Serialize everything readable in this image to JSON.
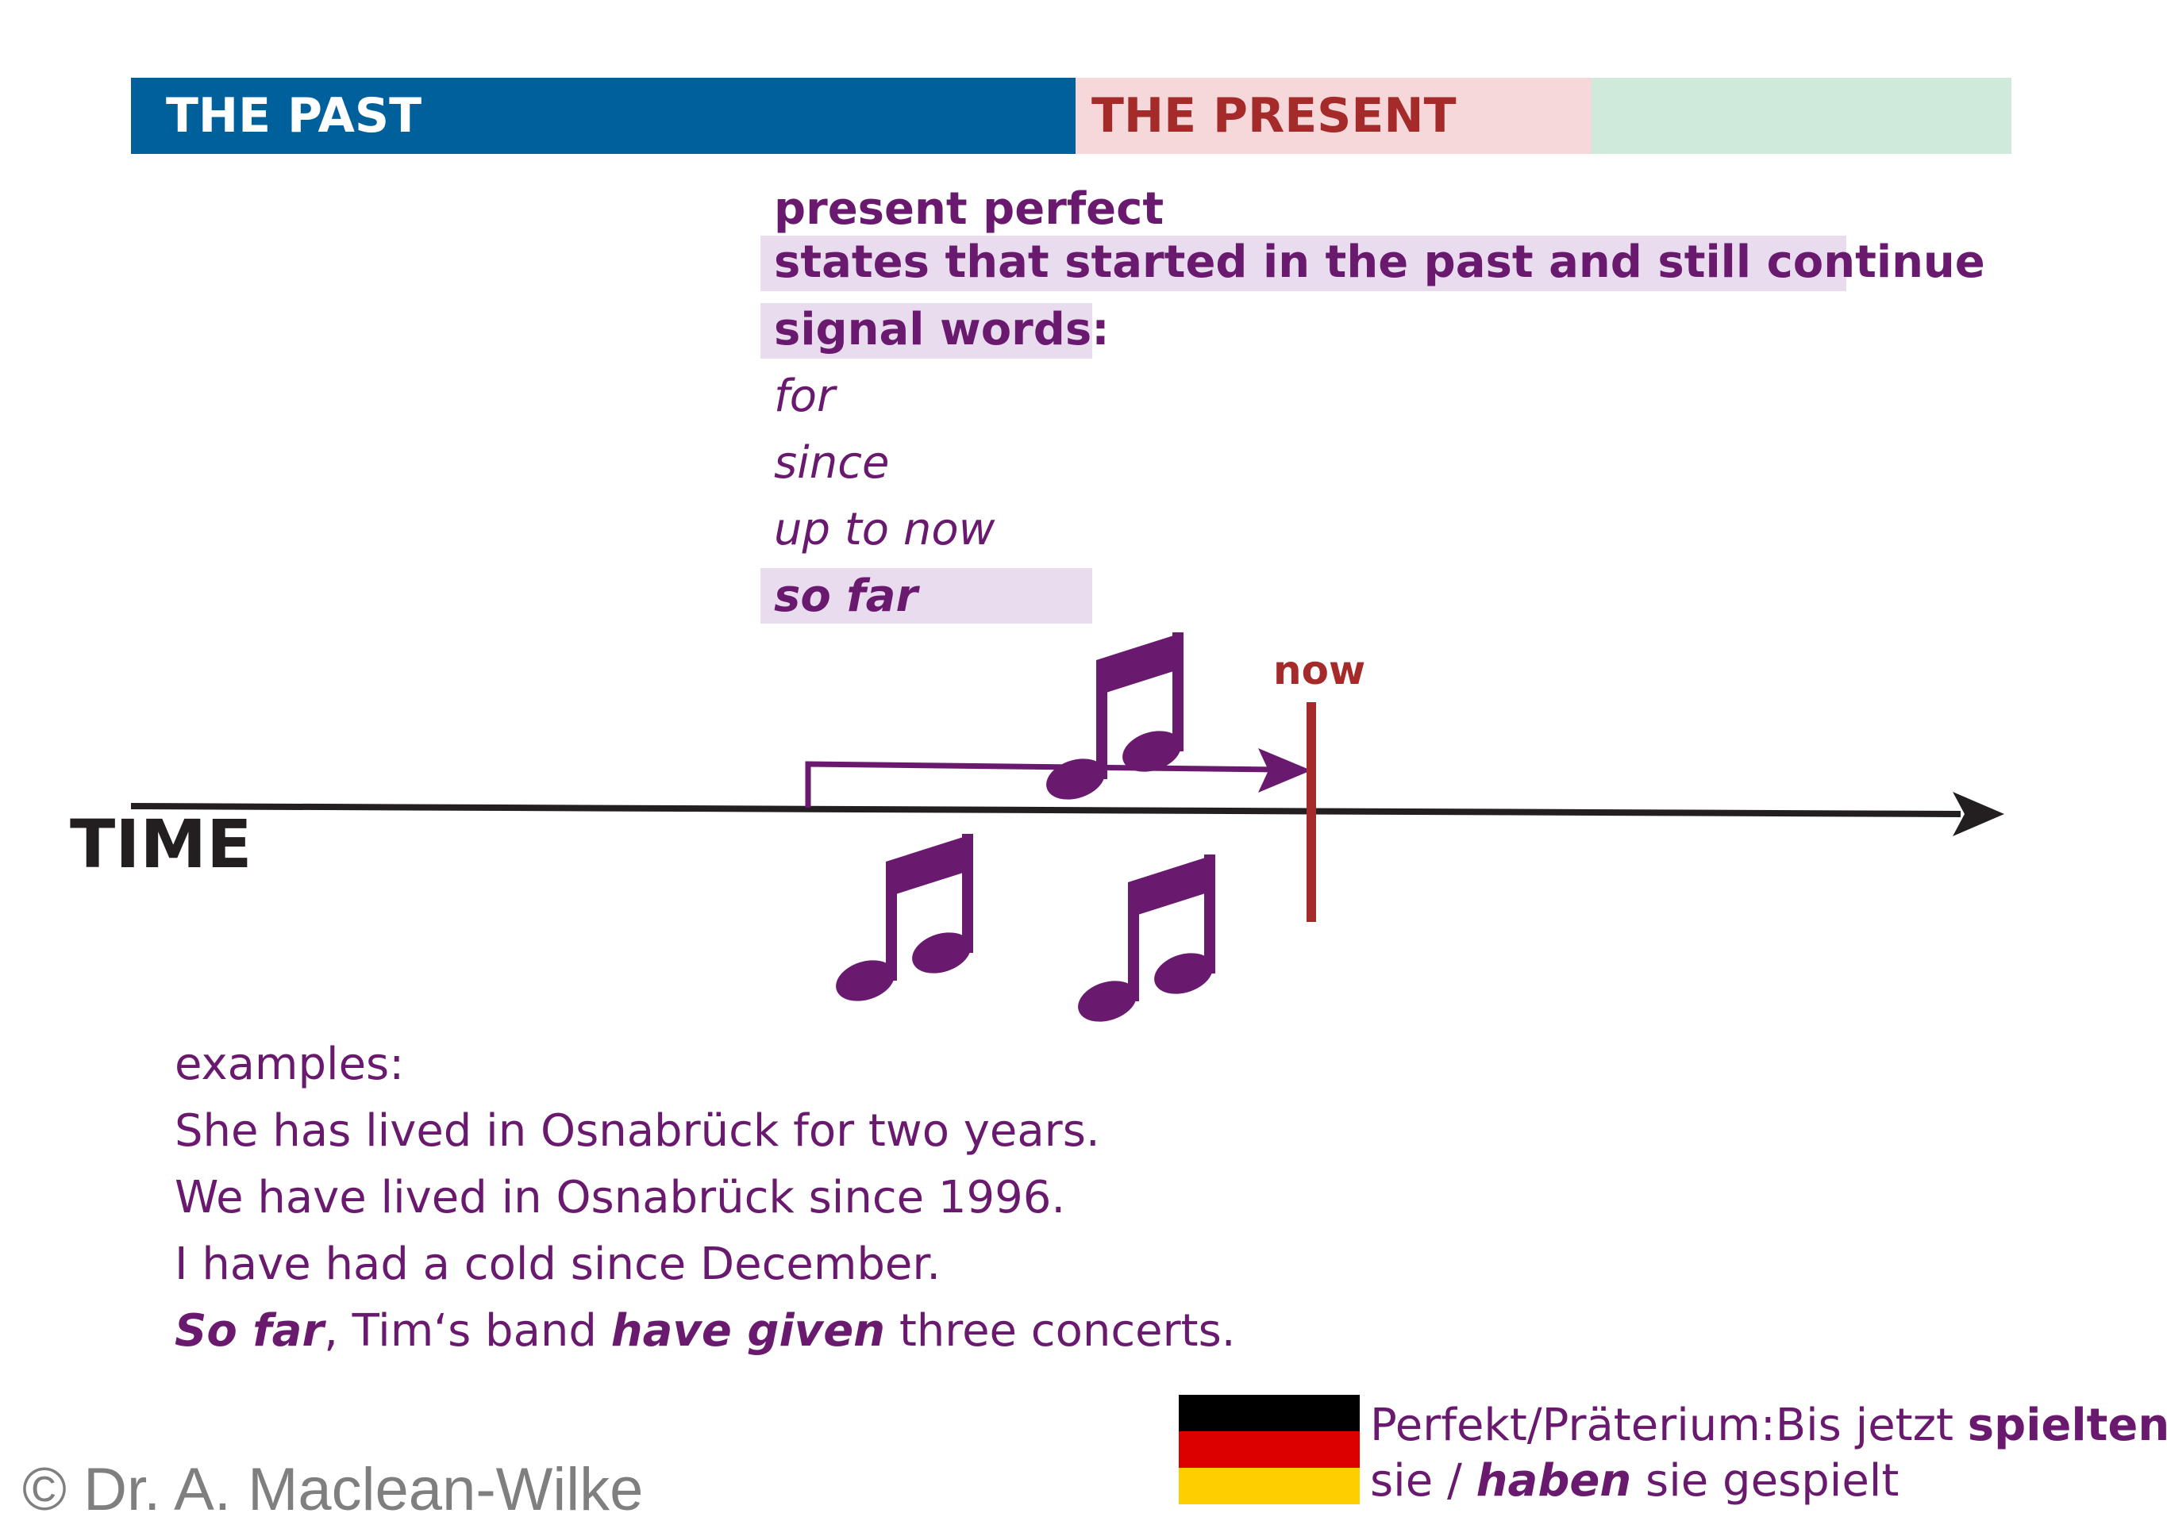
{
  "header": {
    "past_label": "THE PAST",
    "present_label": "THE PRESENT",
    "colors": {
      "past": "#00609c",
      "present": "#f6d8da",
      "future": "#cfeadb",
      "present_text": "#a52a2a"
    }
  },
  "tense": {
    "name": "present perfect",
    "description": "states that started in the past and still continue",
    "signal_heading": "signal words:",
    "signal_words": [
      "for",
      "since",
      "up to now",
      "so far"
    ]
  },
  "timeline": {
    "axis_label": "TIME",
    "now_label": "now",
    "icons": [
      "music-note-icon",
      "music-note-icon",
      "music-note-icon"
    ]
  },
  "examples": {
    "heading": "examples:",
    "lines": [
      "She has lived in Osnabrück for two years.",
      "We have lived in Osnabrück since 1996.",
      "I have had a cold since December."
    ],
    "last": {
      "part1": "So far",
      "part2": ", Tim‘s band ",
      "part3": "have given",
      "part4": " three concerts."
    }
  },
  "german": {
    "line1_a": "Perfekt/Präterium:Bis jetzt ",
    "line1_b": "spielten",
    "line2_a": "sie / ",
    "line2_b": "haben",
    "line2_c": " sie gespielt"
  },
  "copyright": "© Dr. A. Maclean-Wilke",
  "colors": {
    "purple": "#6a1a6e",
    "now_red": "#a52a2a",
    "axis": "#231f20",
    "highlight": "#eadcef"
  }
}
